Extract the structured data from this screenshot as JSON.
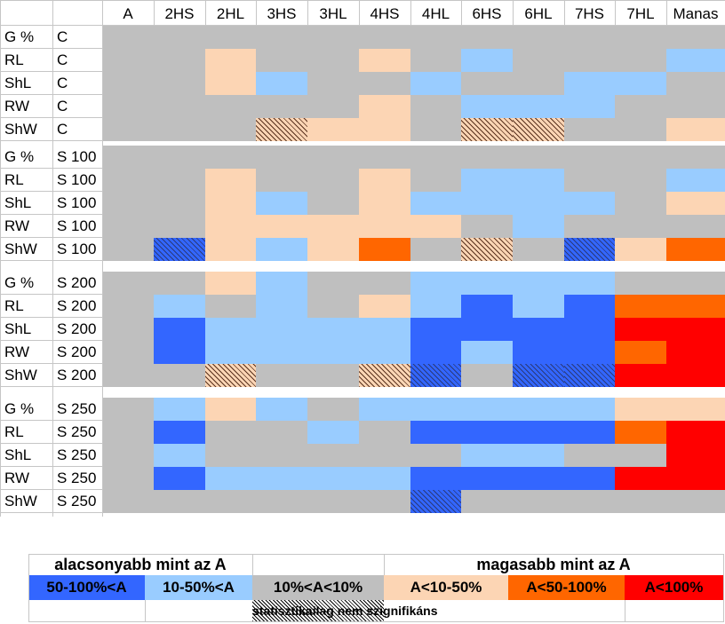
{
  "colors": {
    "G": "#bfbfbf",
    "L1": "#99ccff",
    "L2": "#3366ff",
    "H1": "#fcd5b4",
    "H2": "#ff6600",
    "H3": "#ff0000"
  },
  "chart_data": {
    "type": "heatmap",
    "columns": [
      "A",
      "2HS",
      "2HL",
      "3HS",
      "3HL",
      "4HS",
      "4HL",
      "6HS",
      "6HL",
      "7HS",
      "7HL",
      "Manas"
    ],
    "groups": [
      {
        "treatment": "C",
        "rows": [
          {
            "trait": "G %",
            "treatment": "C",
            "cells": [
              "G",
              "G",
              "G",
              "G",
              "G",
              "G",
              "G",
              "G",
              "G",
              "G",
              "G",
              "G"
            ]
          },
          {
            "trait": "RL",
            "treatment": "C",
            "cells": [
              "G",
              "G",
              "H1",
              "G",
              "G",
              "H1",
              "G",
              "L1",
              "G",
              "G",
              "G",
              "L1"
            ]
          },
          {
            "trait": "ShL",
            "treatment": "C",
            "cells": [
              "G",
              "G",
              "H1",
              "L1",
              "G",
              "G",
              "L1",
              "G",
              "G",
              "L1",
              "L1",
              "G"
            ]
          },
          {
            "trait": "RW",
            "treatment": "C",
            "cells": [
              "G",
              "G",
              "G",
              "G",
              "G",
              "H1",
              "G",
              "L1",
              "L1",
              "L1",
              "G",
              "G"
            ]
          },
          {
            "trait": "ShW",
            "treatment": "C",
            "cells": [
              "G",
              "G",
              "G",
              "H1N",
              "H1",
              "H1",
              "G",
              "H1N",
              "H1N",
              "G",
              "G",
              "H1"
            ]
          }
        ]
      },
      {
        "treatment": "S100",
        "rows": [
          {
            "trait": "G %",
            "treatment": "S 100",
            "cells": [
              "G",
              "G",
              "G",
              "G",
              "G",
              "G",
              "G",
              "G",
              "G",
              "G",
              "G",
              "G"
            ]
          },
          {
            "trait": "RL",
            "treatment": "S 100",
            "cells": [
              "G",
              "G",
              "H1",
              "G",
              "G",
              "H1",
              "G",
              "L1",
              "L1",
              "G",
              "G",
              "L1"
            ]
          },
          {
            "trait": "ShL",
            "treatment": "S 100",
            "cells": [
              "G",
              "G",
              "H1",
              "L1",
              "G",
              "H1",
              "L1",
              "L1",
              "L1",
              "L1",
              "G",
              "H1"
            ]
          },
          {
            "trait": "RW",
            "treatment": "S 100",
            "cells": [
              "G",
              "G",
              "H1",
              "H1",
              "H1",
              "H1",
              "H1",
              "G",
              "L1",
              "G",
              "G",
              "G"
            ]
          },
          {
            "trait": "ShW",
            "treatment": "S 100",
            "cells": [
              "G",
              "L2N",
              "H1",
              "L1",
              "H1",
              "H2",
              "G",
              "H1N",
              "G",
              "L2N",
              "H1",
              "H2"
            ]
          }
        ]
      },
      {
        "treatment": "S200",
        "rows": [
          {
            "trait": "G %",
            "treatment": "S 200",
            "cells": [
              "G",
              "G",
              "H1",
              "L1",
              "G",
              "G",
              "L1",
              "L1",
              "L1",
              "L1",
              "G",
              "G"
            ]
          },
          {
            "trait": "RL",
            "treatment": "S 200",
            "cells": [
              "G",
              "L1",
              "G",
              "L1",
              "G",
              "H1",
              "L1",
              "L2",
              "L1",
              "L2",
              "H2",
              "H2"
            ]
          },
          {
            "trait": "ShL",
            "treatment": "S 200",
            "cells": [
              "G",
              "L2",
              "L1",
              "L1",
              "L1",
              "L1",
              "L2",
              "L2",
              "L2",
              "L2",
              "H3",
              "H3"
            ]
          },
          {
            "trait": "RW",
            "treatment": "S 200",
            "cells": [
              "G",
              "L2",
              "L1",
              "L1",
              "L1",
              "L1",
              "L2",
              "L1",
              "L2",
              "L2",
              "H2",
              "H3"
            ]
          },
          {
            "trait": "ShW",
            "treatment": "S 200",
            "cells": [
              "G",
              "G",
              "H1N",
              "G",
              "G",
              "H1N",
              "L2N",
              "G",
              "L2N",
              "L2N",
              "H3",
              "H3"
            ]
          }
        ]
      },
      {
        "treatment": "S250",
        "rows": [
          {
            "trait": "G %",
            "treatment": "S 250",
            "cells": [
              "G",
              "L1",
              "H1",
              "L1",
              "G",
              "L1",
              "L1",
              "L1",
              "L1",
              "L1",
              "H1",
              "H1"
            ]
          },
          {
            "trait": "RL",
            "treatment": "S 250",
            "cells": [
              "G",
              "L2",
              "G",
              "G",
              "L1",
              "G",
              "L2",
              "L2",
              "L2",
              "L2",
              "H2",
              "H3"
            ]
          },
          {
            "trait": "ShL",
            "treatment": "S 250",
            "cells": [
              "G",
              "L1",
              "G",
              "G",
              "G",
              "G",
              "G",
              "L1",
              "L1",
              "G",
              "G",
              "H3"
            ]
          },
          {
            "trait": "RW",
            "treatment": "S 250",
            "cells": [
              "G",
              "L2",
              "L1",
              "L1",
              "L1",
              "L1",
              "L2",
              "L2",
              "L2",
              "L2",
              "H3",
              "H3"
            ]
          },
          {
            "trait": "ShW",
            "treatment": "S 250",
            "cells": [
              "G",
              "G",
              "G",
              "G",
              "G",
              "G",
              "L2N",
              "G",
              "G",
              "G",
              "G",
              "G"
            ]
          }
        ]
      }
    ],
    "legend": {
      "lower_title": "alacsonyabb mint az A",
      "higher_title": "magasabb mint az A",
      "categories": [
        {
          "code": "L2",
          "label": "50-100%<A"
        },
        {
          "code": "L1",
          "label": "10-50%<A"
        },
        {
          "code": "G",
          "label": "10%<A<10%"
        },
        {
          "code": "H1",
          "label": "A<10-50%"
        },
        {
          "code": "H2",
          "label": "A<50-100%"
        },
        {
          "code": "H3",
          "label": "A<100%"
        }
      ],
      "nonsignificant": "statisztikailag nem szignifikáns"
    }
  }
}
